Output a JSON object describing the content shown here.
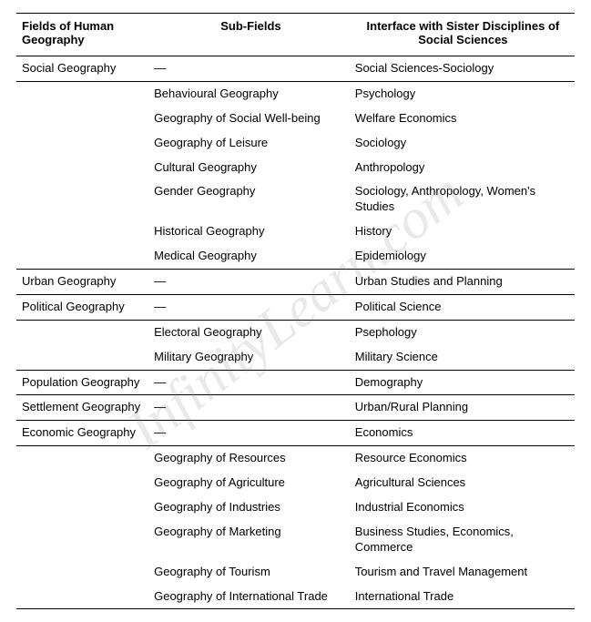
{
  "watermark": "InfinityLearn.com",
  "columns": [
    "Fields of Human Geography",
    "Sub-Fields",
    "Interface with Sister Disciplines of Social Sciences"
  ],
  "rows": [
    {
      "field": "Social Geography",
      "sub": "—",
      "intf": "Social Sciences-Sociology",
      "rule": true
    },
    {
      "field": "",
      "sub": "Behavioural Geography",
      "intf": "Psychology",
      "rule": false
    },
    {
      "field": "",
      "sub": "Geography of Social Well-being",
      "intf": "Welfare Economics",
      "rule": false
    },
    {
      "field": "",
      "sub": "Geography of Leisure",
      "intf": "Sociology",
      "rule": false
    },
    {
      "field": "",
      "sub": "Cultural Geography",
      "intf": "Anthropology",
      "rule": false
    },
    {
      "field": "",
      "sub": "Gender Geography",
      "intf": "Sociology, Anthropology, Women's Studies",
      "rule": false
    },
    {
      "field": "",
      "sub": "Historical Geography",
      "intf": "History",
      "rule": false
    },
    {
      "field": "",
      "sub": "Medical Geography",
      "intf": "Epidemiology",
      "rule": true
    },
    {
      "field": "Urban Geography",
      "sub": "—",
      "intf": "Urban Studies and Planning",
      "rule": true
    },
    {
      "field": "Political Geography",
      "sub": "—",
      "intf": "Political Science",
      "rule": true
    },
    {
      "field": "",
      "sub": "Electoral Geography",
      "intf": "Psephology",
      "rule": false
    },
    {
      "field": "",
      "sub": "Military Geography",
      "intf": "Military Science",
      "rule": true
    },
    {
      "field": "Population Geography",
      "sub": "—",
      "intf": "Demography",
      "rule": true
    },
    {
      "field": "Settlement Geography",
      "sub": "—",
      "intf": "Urban/Rural Planning",
      "rule": true
    },
    {
      "field": "Economic Geography",
      "sub": "—",
      "intf": "Economics",
      "rule": true
    },
    {
      "field": "",
      "sub": "Geography of Resources",
      "intf": "Resource Economics",
      "rule": false
    },
    {
      "field": "",
      "sub": "Geography of Agriculture",
      "intf": "Agricultural Sciences",
      "rule": false
    },
    {
      "field": "",
      "sub": "Geography of Industries",
      "intf": "Industrial Economics",
      "rule": false
    },
    {
      "field": "",
      "sub": "Geography of Marketing",
      "intf": "Business Studies, Economics, Commerce",
      "rule": false
    },
    {
      "field": "",
      "sub": "Geography of Tourism",
      "intf": "Tourism and Travel Management",
      "rule": false
    },
    {
      "field": "",
      "sub": "Geography of International Trade",
      "intf": "International Trade",
      "rule": true
    }
  ]
}
